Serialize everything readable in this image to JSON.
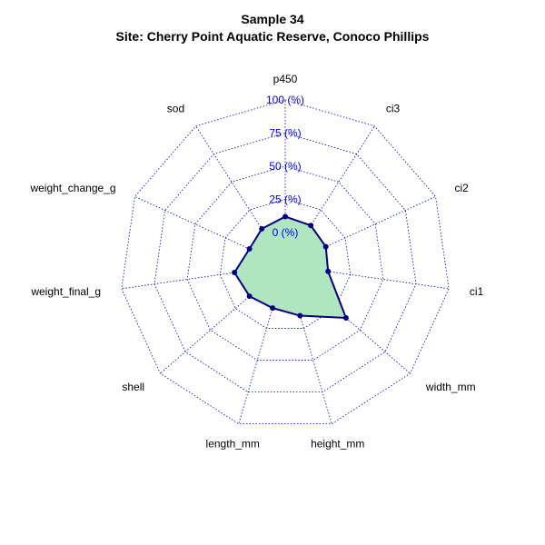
{
  "chart_data": {
    "type": "radar",
    "title": "Sample 34",
    "subtitle": "Site: Cherry Point Aquatic Reserve, Conoco Phillips",
    "axes": [
      "p450",
      "ci3",
      "ci2",
      "ci1",
      "width_mm",
      "height_mm",
      "length_mm",
      "shell",
      "weight_final_g",
      "weight_change_g",
      "sod"
    ],
    "ring_labels": [
      "0 (%)",
      "25 (%)",
      "50 (%)",
      "75 (%)",
      "100 (%)"
    ],
    "ring_values": [
      0,
      25,
      50,
      75,
      100
    ],
    "range": [
      0,
      100
    ],
    "series": [
      {
        "values": [
          12,
          11,
          9,
          8,
          36,
          15,
          9,
          11,
          14,
          5,
          8
        ]
      }
    ],
    "colors": {
      "grid": "#0000cd",
      "series_line": "#00007f",
      "series_fill": "#afe6bf",
      "point": "#00007f"
    }
  }
}
